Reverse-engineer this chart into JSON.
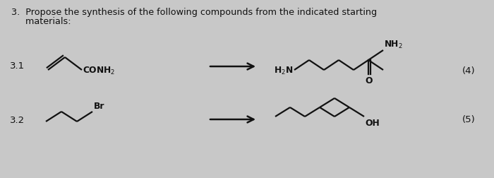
{
  "bg_color": "#c8c8c8",
  "text_color": "#111111",
  "title_line1": "3.  Propose the synthesis of the following compounds from the indicated starting",
  "title_line2": "     materials:",
  "label_31": "3.1",
  "label_32": "3.2",
  "label_4": "(4)",
  "label_5": "(5)",
  "lw": 1.6,
  "fs_title": 9.2,
  "fs_label": 9.5,
  "fs_chem": 8.8
}
